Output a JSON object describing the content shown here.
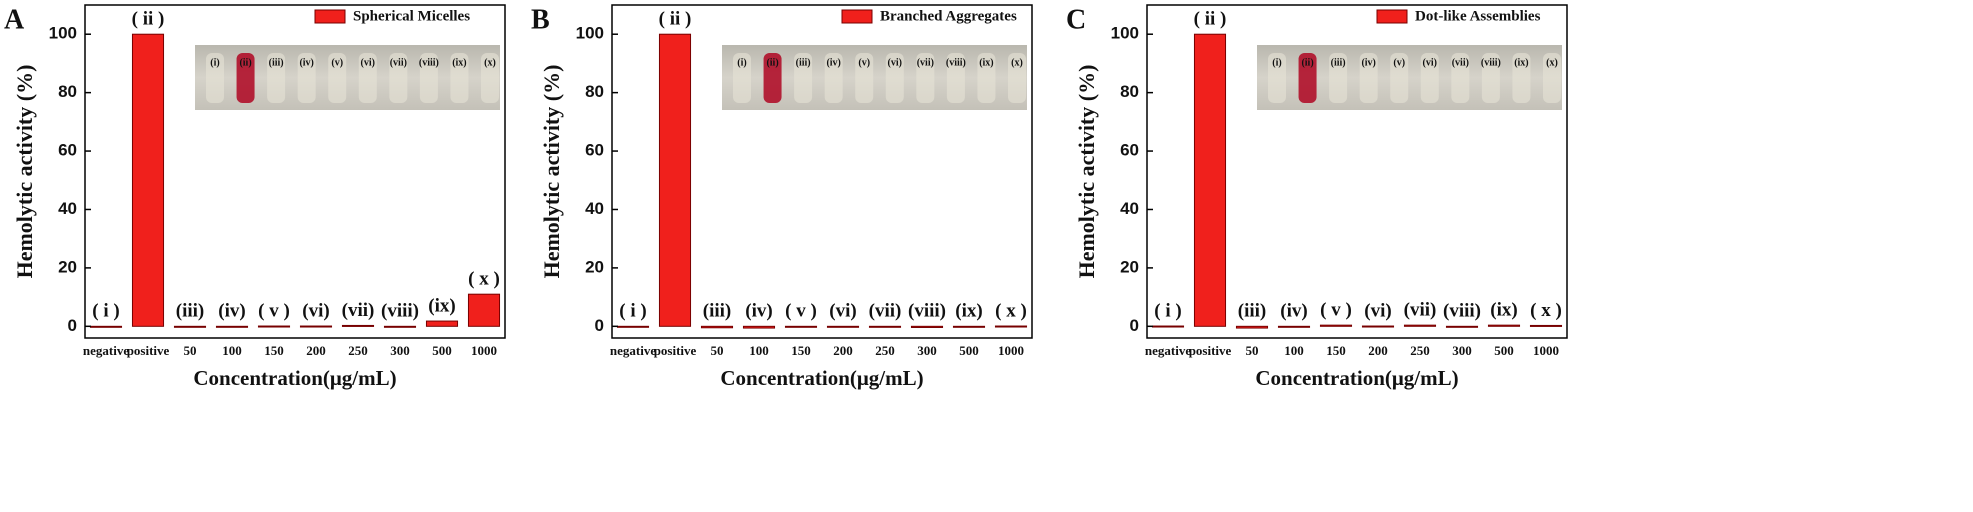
{
  "chart_data": [
    {
      "type": "bar",
      "panel": "A",
      "ylabel": "Hemolytic activity (%)",
      "xlabel": "Concentration(μg/mL)",
      "categories": [
        "negative",
        "positive",
        "50",
        "100",
        "150",
        "200",
        "250",
        "300",
        "500",
        "1000"
      ],
      "annotations": [
        "( i )",
        "( ii )",
        "(iii)",
        "(iv)",
        "( v )",
        "(vi)",
        "(vii)",
        "(viii)",
        "(ix)",
        "( x )"
      ],
      "inset_labels": [
        "(i)",
        "(ii)",
        "(iii)",
        "(iv)",
        "(v)",
        "(vi)",
        "(vii)",
        "(viii)",
        "(ix)",
        "(x)"
      ],
      "series": [
        {
          "name": "Spherical Micelles",
          "color": "#f0201c",
          "values": [
            -0.2,
            100,
            -0.3,
            -0.2,
            0.1,
            0.1,
            0.3,
            -0.2,
            1.8,
            11
          ]
        }
      ],
      "ylim": [
        -4,
        110
      ],
      "yticks": [
        0,
        20,
        40,
        60,
        80,
        100
      ],
      "legend": "top-right"
    },
    {
      "type": "bar",
      "panel": "B",
      "ylabel": "Hemolytic activity (%)",
      "xlabel": "Concentration(μg/mL)",
      "categories": [
        "negative",
        "positive",
        "50",
        "100",
        "150",
        "200",
        "250",
        "300",
        "500",
        "1000"
      ],
      "annotations": [
        "( i )",
        "( ii )",
        "(iii)",
        "(iv)",
        "( v )",
        "(vi)",
        "(vii)",
        "(viii)",
        "(ix)",
        "( x )"
      ],
      "inset_labels": [
        "(i)",
        "(ii)",
        "(iii)",
        "(iv)",
        "(v)",
        "(vi)",
        "(vii)",
        "(viii)",
        "(ix)",
        "(x)"
      ],
      "series": [
        {
          "name": "Branched Aggregates",
          "color": "#f0201c",
          "values": [
            0,
            100,
            -0.5,
            -0.6,
            -0.3,
            -0.2,
            -0.3,
            -0.4,
            -0.1,
            0.1
          ]
        }
      ],
      "ylim": [
        -4,
        110
      ],
      "yticks": [
        0,
        20,
        40,
        60,
        80,
        100
      ],
      "legend": "top-right"
    },
    {
      "type": "bar",
      "panel": "C",
      "ylabel": "Hemolytic activity (%)",
      "xlabel": "Concentration(μg/mL)",
      "categories": [
        "negative",
        "positive",
        "50",
        "100",
        "150",
        "200",
        "250",
        "300",
        "500",
        "1000"
      ],
      "annotations": [
        "( i )",
        "( ii )",
        "(iii)",
        "(iv)",
        "( v )",
        "(vi)",
        "(vii)",
        "(viii)",
        "(ix)",
        "( x )"
      ],
      "inset_labels": [
        "(i)",
        "(ii)",
        "(iii)",
        "(iv)",
        "(v)",
        "(vi)",
        "(vii)",
        "(viii)",
        "(ix)",
        "(x)"
      ],
      "series": [
        {
          "name": "Dot-like Assemblies",
          "color": "#f0201c",
          "values": [
            0.1,
            100,
            -0.6,
            -0.2,
            0.4,
            0.1,
            0.4,
            -0.3,
            0.4,
            0.3
          ]
        }
      ],
      "ylim": [
        -4,
        110
      ],
      "yticks": [
        0,
        20,
        40,
        60,
        80,
        100
      ],
      "legend": "top-right"
    }
  ]
}
